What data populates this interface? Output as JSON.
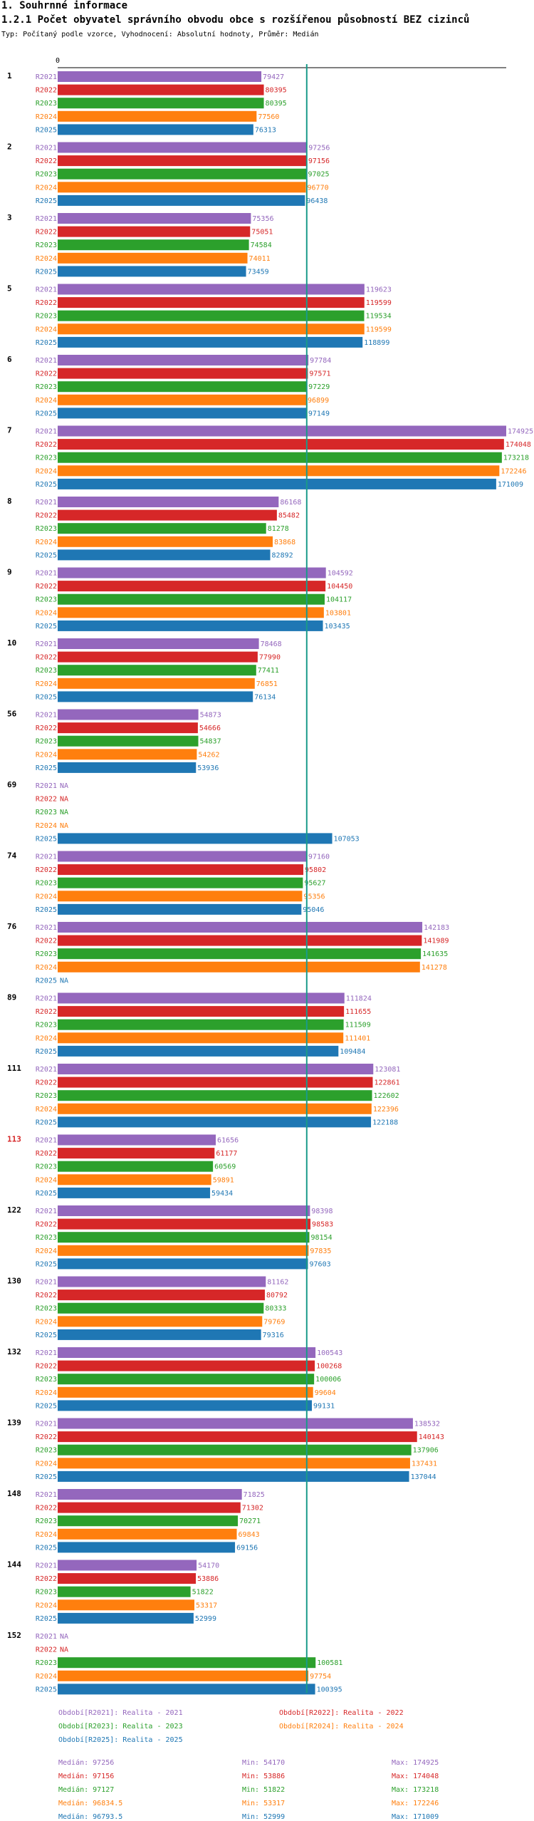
{
  "section_title": "1. Souhrnné informace",
  "chart_title": "1.2.1 Počet obyvatel správního obvodu obce s rozšířenou působností BEZ cizinců",
  "subtitle": "Typ: Počítaný podle vzorce, Vyhodnocení: Absolutní hodnoty, Průměr: Medián",
  "colors": {
    "R2021": "#9467bd",
    "R2022": "#d62728",
    "R2023": "#2ca02c",
    "R2024": "#ff7f0e",
    "R2025": "#1f77b4",
    "median_line": "#1a9a8a",
    "highlight": "#d62728"
  },
  "chart_data": {
    "type": "bar",
    "orientation": "horizontal",
    "title": "1.2.1 Počet obyvatel správního obvodu obce s rozšířenou působností BEZ cizinců",
    "xlim": [
      0,
      174925
    ],
    "x_tick": "0",
    "median_reference": 97127,
    "series_names": [
      "R2021",
      "R2022",
      "R2023",
      "R2024",
      "R2025"
    ],
    "missing_label": "NA",
    "highlight_category": "113",
    "categories": [
      "1",
      "2",
      "3",
      "5",
      "6",
      "7",
      "8",
      "9",
      "10",
      "56",
      "69",
      "74",
      "76",
      "89",
      "111",
      "113",
      "122",
      "130",
      "132",
      "139",
      "148",
      "144",
      "152"
    ],
    "values": [
      [
        79427,
        80395,
        80395,
        77560,
        76313
      ],
      [
        97256,
        97156,
        97025,
        96770,
        96438
      ],
      [
        75356,
        75051,
        74584,
        74011,
        73459
      ],
      [
        119623,
        119599,
        119534,
        119599,
        118899
      ],
      [
        97784,
        97571,
        97229,
        96899,
        97149
      ],
      [
        174925,
        174048,
        173218,
        172246,
        171009
      ],
      [
        86168,
        85482,
        81278,
        83868,
        82892
      ],
      [
        104592,
        104450,
        104117,
        103801,
        103435
      ],
      [
        78468,
        77990,
        77411,
        76851,
        76134
      ],
      [
        54873,
        54666,
        54837,
        54262,
        53936
      ],
      [
        null,
        null,
        null,
        null,
        107053
      ],
      [
        97160,
        95802,
        95627,
        95356,
        95046
      ],
      [
        142183,
        141989,
        141635,
        141278,
        null
      ],
      [
        111824,
        111655,
        111509,
        111401,
        109484
      ],
      [
        123081,
        122861,
        122602,
        122396,
        122188
      ],
      [
        61656,
        61177,
        60569,
        59891,
        59434
      ],
      [
        98398,
        98583,
        98154,
        97835,
        97603
      ],
      [
        81162,
        80792,
        80333,
        79769,
        79316
      ],
      [
        100543,
        100268,
        100006,
        99604,
        99131
      ],
      [
        138532,
        140143,
        137906,
        137431,
        137044
      ],
      [
        71825,
        71302,
        70271,
        69843,
        69156
      ],
      [
        54170,
        53886,
        51822,
        53317,
        52999
      ],
      [
        null,
        null,
        100581,
        97754,
        100395
      ]
    ]
  },
  "legend": {
    "entries": [
      {
        "label": "Období[R2021]: Realita - 2021",
        "series": "R2021"
      },
      {
        "label": "Období[R2022]: Realita - 2022",
        "series": "R2022"
      },
      {
        "label": "Období[R2023]: Realita - 2023",
        "series": "R2023"
      },
      {
        "label": "Období[R2024]: Realita - 2024",
        "series": "R2024"
      },
      {
        "label": "Období[R2025]: Realita - 2025",
        "series": "R2025"
      }
    ],
    "stats": [
      {
        "series": "R2021",
        "median": "Medián: 97256",
        "min": "Min: 54170",
        "max": "Max: 174925"
      },
      {
        "series": "R2022",
        "median": "Medián: 97156",
        "min": "Min: 53886",
        "max": "Max: 174048"
      },
      {
        "series": "R2023",
        "median": "Medián: 97127",
        "min": "Min: 51822",
        "max": "Max: 173218"
      },
      {
        "series": "R2024",
        "median": "Medián: 96834.5",
        "min": "Min: 53317",
        "max": "Max: 172246"
      },
      {
        "series": "R2025",
        "median": "Medián: 96793.5",
        "min": "Min: 52999",
        "max": "Max: 171009"
      }
    ]
  }
}
